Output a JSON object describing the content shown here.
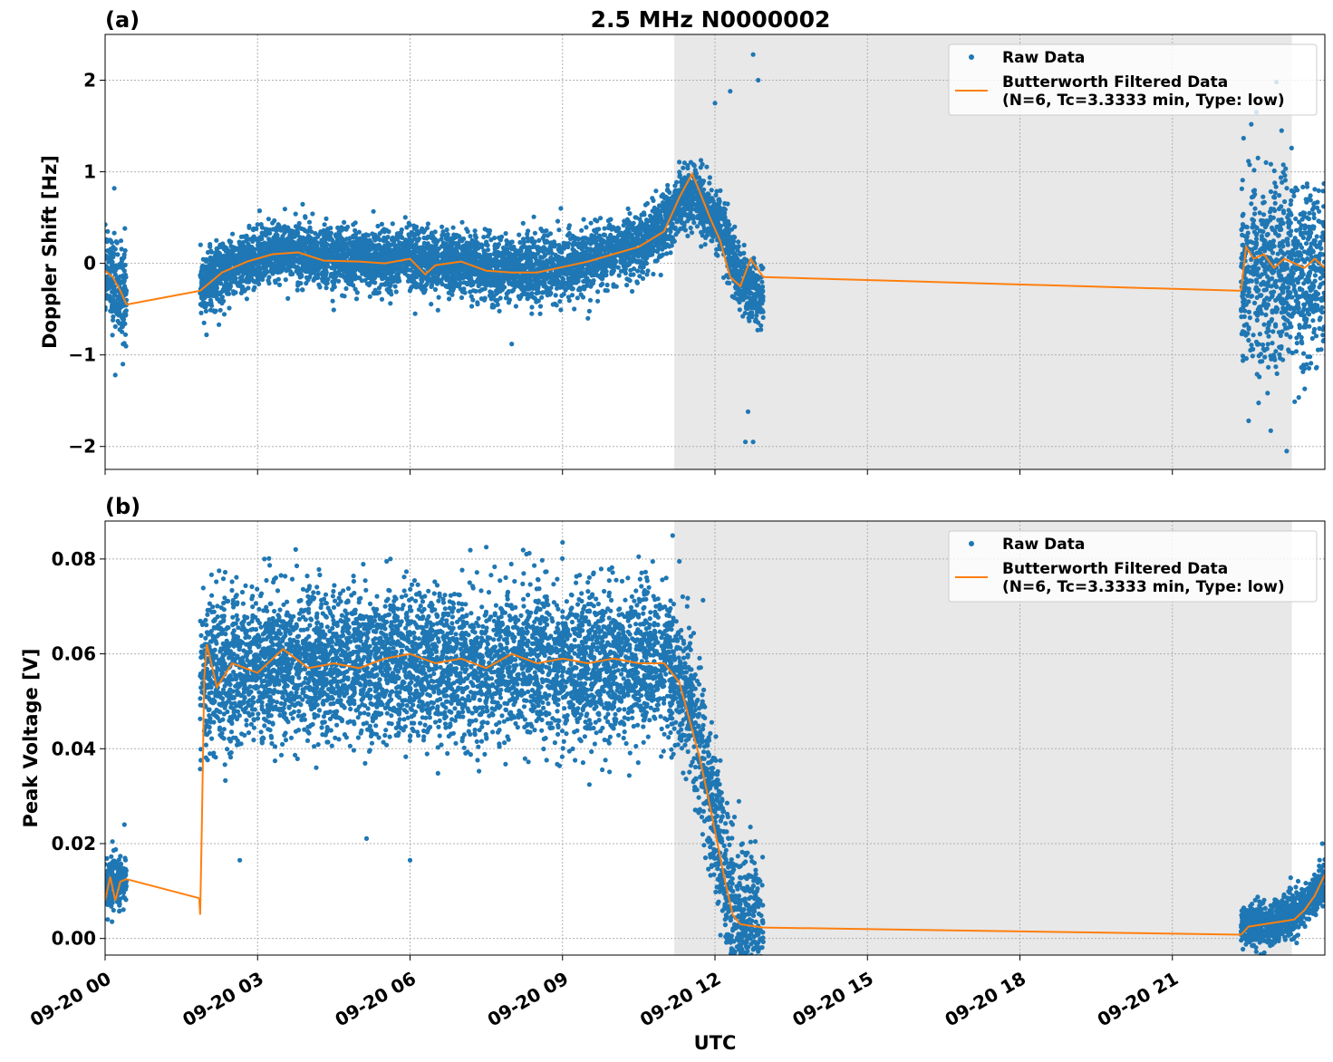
{
  "title": "2.5 MHz N0000002",
  "colors": {
    "raw": "#1f77b4",
    "filtered": "#ff7f0e",
    "shade": "#e8e8e8",
    "grid": "#b0b0b0"
  },
  "chart_data": [
    {
      "type": "scatter",
      "panel_label": "(a)",
      "ylabel": "Doppler Shift [Hz]",
      "xlabel": "",
      "xlim_hours": [
        0,
        24
      ],
      "ylim": [
        -2.25,
        2.5
      ],
      "yticks": [
        -2,
        -1,
        0,
        1,
        2
      ],
      "ytick_labels": [
        "−2",
        "−1",
        "0",
        "1",
        "2"
      ],
      "grid": true,
      "night_shade_hours": [
        11.2,
        23.35
      ],
      "legend": {
        "placement": "top-right",
        "raw_label": "Raw Data",
        "filtered_label_line1": "Butterworth Filtered Data",
        "filtered_label_line2": "(N=6, Tc=3.3333 min, Type: low)"
      },
      "raw_segments": [
        {
          "start": 0.0,
          "end": 0.42,
          "center": [
            [
              0,
              -0.1
            ],
            [
              0.42,
              -0.35
            ]
          ],
          "spread": 0.45,
          "outliers": [
            [
              0.18,
              0.82
            ],
            [
              0.2,
              -1.22
            ],
            [
              0.35,
              -1.1
            ]
          ]
        },
        {
          "start": 1.87,
          "end": 12.95,
          "center": [
            [
              1.87,
              -0.25
            ],
            [
              2.3,
              -0.1
            ],
            [
              2.8,
              0.02
            ],
            [
              3.3,
              0.12
            ],
            [
              3.8,
              0.14
            ],
            [
              4.3,
              0.05
            ],
            [
              5.0,
              0.05
            ],
            [
              5.5,
              0.0
            ],
            [
              6.0,
              0.05
            ],
            [
              6.5,
              -0.02
            ],
            [
              7.0,
              0.02
            ],
            [
              7.5,
              -0.05
            ],
            [
              8.0,
              -0.08
            ],
            [
              8.5,
              -0.08
            ],
            [
              9.0,
              -0.02
            ],
            [
              9.5,
              0.02
            ],
            [
              10.0,
              0.12
            ],
            [
              10.5,
              0.2
            ],
            [
              11.0,
              0.4
            ],
            [
              11.3,
              0.65
            ],
            [
              11.6,
              0.8
            ],
            [
              11.9,
              0.55
            ],
            [
              12.2,
              0.3
            ],
            [
              12.5,
              -0.2
            ],
            [
              12.95,
              -0.4
            ]
          ],
          "spread": 0.3,
          "outliers": [
            [
              12.0,
              1.75
            ],
            [
              12.3,
              1.88
            ],
            [
              12.75,
              2.28
            ],
            [
              12.85,
              2.0
            ],
            [
              12.6,
              -1.95
            ],
            [
              12.75,
              -1.95
            ],
            [
              12.65,
              -1.62
            ],
            [
              8.0,
              -0.88
            ],
            [
              6.1,
              -0.55
            ],
            [
              9.5,
              -0.6
            ]
          ]
        },
        {
          "start": 22.35,
          "end": 24.0,
          "center": [
            [
              22.35,
              -0.1
            ],
            [
              23.0,
              -0.15
            ],
            [
              24.0,
              -0.1
            ]
          ],
          "spread": 0.9,
          "outliers": [
            [
              23.05,
              1.98
            ],
            [
              23.15,
              1.45
            ],
            [
              23.25,
              -2.05
            ],
            [
              22.5,
              -1.72
            ],
            [
              23.6,
              -1.15
            ]
          ]
        }
      ],
      "filtered_segments": [
        [
          [
            0.0,
            -0.08
          ],
          [
            0.15,
            -0.15
          ],
          [
            0.3,
            -0.3
          ],
          [
            0.42,
            -0.45
          ]
        ],
        [
          [
            0.42,
            -0.45
          ],
          [
            1.87,
            -0.3
          ]
        ],
        [
          [
            1.87,
            -0.3
          ],
          [
            2.3,
            -0.1
          ],
          [
            2.8,
            0.02
          ],
          [
            3.3,
            0.1
          ],
          [
            3.8,
            0.12
          ],
          [
            4.3,
            0.03
          ],
          [
            5.0,
            0.02
          ],
          [
            5.5,
            0.0
          ],
          [
            6.0,
            0.05
          ],
          [
            6.3,
            -0.12
          ],
          [
            6.5,
            -0.02
          ],
          [
            7.0,
            0.02
          ],
          [
            7.5,
            -0.08
          ],
          [
            8.0,
            -0.1
          ],
          [
            8.5,
            -0.1
          ],
          [
            9.0,
            -0.04
          ],
          [
            9.5,
            0.02
          ],
          [
            10.0,
            0.1
          ],
          [
            10.5,
            0.18
          ],
          [
            11.0,
            0.35
          ],
          [
            11.3,
            0.72
          ],
          [
            11.55,
            0.98
          ],
          [
            11.7,
            0.78
          ],
          [
            11.9,
            0.5
          ],
          [
            12.1,
            0.25
          ],
          [
            12.3,
            -0.15
          ],
          [
            12.5,
            -0.25
          ],
          [
            12.7,
            0.05
          ],
          [
            12.95,
            -0.15
          ]
        ],
        [
          [
            12.95,
            -0.15
          ],
          [
            22.35,
            -0.3
          ]
        ],
        [
          [
            22.35,
            -0.3
          ],
          [
            22.45,
            0.18
          ],
          [
            22.6,
            0.05
          ],
          [
            22.8,
            0.1
          ],
          [
            23.0,
            -0.05
          ],
          [
            23.2,
            0.05
          ],
          [
            23.4,
            0.0
          ],
          [
            23.6,
            -0.05
          ],
          [
            23.8,
            0.05
          ],
          [
            24.0,
            -0.05
          ]
        ]
      ]
    },
    {
      "type": "scatter",
      "panel_label": "(b)",
      "ylabel": "Peak Voltage [V]",
      "xlabel": "UTC",
      "xlim_hours": [
        0,
        24
      ],
      "ylim": [
        -0.0035,
        0.088
      ],
      "yticks": [
        0.0,
        0.02,
        0.04,
        0.06,
        0.08
      ],
      "ytick_labels": [
        "0.00",
        "0.02",
        "0.04",
        "0.06",
        "0.08"
      ],
      "xticks_hours": [
        0,
        3,
        6,
        9,
        12,
        15,
        18,
        21
      ],
      "xtick_labels": [
        "09-20 00",
        "09-20 03",
        "09-20 06",
        "09-20 09",
        "09-20 12",
        "09-20 15",
        "09-20 18",
        "09-20 21"
      ],
      "grid": true,
      "night_shade_hours": [
        11.2,
        23.35
      ],
      "legend": {
        "placement": "top-right",
        "raw_label": "Raw Data",
        "filtered_label_line1": "Butterworth Filtered Data",
        "filtered_label_line2": "(N=6, Tc=3.3333 min, Type: low)"
      },
      "raw_segments": [
        {
          "start": 0.0,
          "end": 0.42,
          "center": [
            [
              0,
              0.011
            ],
            [
              0.42,
              0.013
            ]
          ],
          "spread": 0.005,
          "outliers": [
            [
              0.38,
              0.024
            ],
            [
              0.05,
              0.004
            ]
          ]
        },
        {
          "start": 1.87,
          "end": 12.95,
          "center": [
            [
              1.87,
              0.055
            ],
            [
              2.5,
              0.057
            ],
            [
              3.5,
              0.058
            ],
            [
              4.5,
              0.058
            ],
            [
              5.5,
              0.058
            ],
            [
              6.5,
              0.058
            ],
            [
              7.5,
              0.057
            ],
            [
              8.5,
              0.058
            ],
            [
              9.5,
              0.058
            ],
            [
              10.5,
              0.058
            ],
            [
              11.0,
              0.058
            ],
            [
              11.4,
              0.052
            ],
            [
              11.7,
              0.042
            ],
            [
              12.0,
              0.025
            ],
            [
              12.2,
              0.012
            ],
            [
              12.4,
              0.004
            ],
            [
              12.6,
              0.0025
            ],
            [
              12.95,
              0.0025
            ]
          ],
          "spread": 0.014,
          "outliers": [
            [
              3.75,
              0.082
            ],
            [
              6.0,
              0.0165
            ],
            [
              2.65,
              0.0165
            ],
            [
              9.0,
              0.0835
            ],
            [
              7.5,
              0.0825
            ],
            [
              11.3,
              0.0795
            ]
          ]
        },
        {
          "start": 22.35,
          "end": 24.0,
          "center": [
            [
              22.35,
              0.0025
            ],
            [
              23.0,
              0.003
            ],
            [
              23.5,
              0.006
            ],
            [
              24.0,
              0.012
            ]
          ],
          "spread": 0.004,
          "outliers": [
            [
              23.95,
              0.02
            ]
          ]
        }
      ],
      "filtered_segments": [
        [
          [
            0.0,
            0.008
          ],
          [
            0.1,
            0.013
          ],
          [
            0.2,
            0.008
          ],
          [
            0.3,
            0.012
          ],
          [
            0.42,
            0.0125
          ]
        ],
        [
          [
            0.42,
            0.0125
          ],
          [
            1.85,
            0.0085
          ]
        ],
        [
          [
            1.85,
            0.0085
          ],
          [
            1.87,
            0.005
          ],
          [
            1.9,
            0.022
          ],
          [
            1.95,
            0.055
          ],
          [
            2.0,
            0.062
          ],
          [
            2.2,
            0.053
          ],
          [
            2.5,
            0.058
          ],
          [
            3.0,
            0.056
          ],
          [
            3.5,
            0.061
          ],
          [
            4.0,
            0.057
          ],
          [
            4.5,
            0.058
          ],
          [
            5.0,
            0.057
          ],
          [
            5.5,
            0.059
          ],
          [
            6.0,
            0.06
          ],
          [
            6.5,
            0.058
          ],
          [
            7.0,
            0.059
          ],
          [
            7.5,
            0.057
          ],
          [
            8.0,
            0.06
          ],
          [
            8.5,
            0.058
          ],
          [
            9.0,
            0.059
          ],
          [
            9.5,
            0.058
          ],
          [
            10.0,
            0.059
          ],
          [
            10.5,
            0.058
          ],
          [
            11.0,
            0.058
          ],
          [
            11.3,
            0.054
          ],
          [
            11.5,
            0.046
          ],
          [
            11.7,
            0.038
          ],
          [
            11.9,
            0.028
          ],
          [
            12.05,
            0.02
          ],
          [
            12.2,
            0.012
          ],
          [
            12.35,
            0.005
          ],
          [
            12.5,
            0.003
          ],
          [
            12.95,
            0.0023
          ]
        ],
        [
          [
            12.95,
            0.0023
          ],
          [
            22.35,
            0.0008
          ]
        ],
        [
          [
            22.35,
            0.0008
          ],
          [
            22.5,
            0.0025
          ],
          [
            22.8,
            0.003
          ],
          [
            23.1,
            0.0035
          ],
          [
            23.4,
            0.004
          ],
          [
            23.6,
            0.006
          ],
          [
            23.8,
            0.009
          ],
          [
            24.0,
            0.0135
          ]
        ]
      ]
    }
  ]
}
